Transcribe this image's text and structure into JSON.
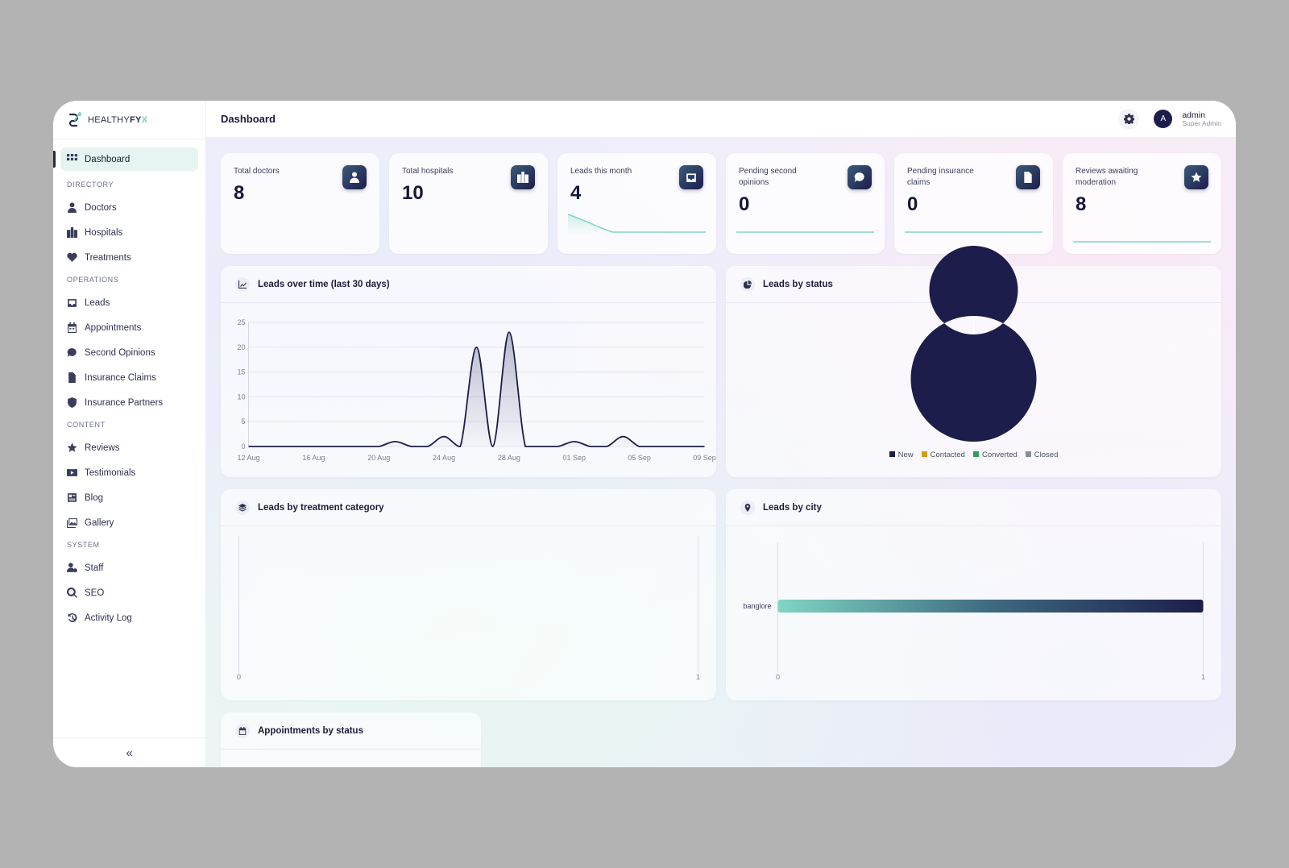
{
  "brand": {
    "prefix": "HEALTHY",
    "bold": "FY",
    "accent": "X"
  },
  "header": {
    "title": "Dashboard",
    "user_initial": "A",
    "user_name": "admin",
    "user_role": "Super Admin"
  },
  "sidebar": {
    "active": "Dashboard",
    "directory_label": "DIRECTORY",
    "directory": [
      "Doctors",
      "Hospitals",
      "Treatments"
    ],
    "operations_label": "OPERATIONS",
    "operations": [
      "Leads",
      "Appointments",
      "Second Opinions",
      "Insurance Claims",
      "Insurance Partners"
    ],
    "content_label": "CONTENT",
    "content": [
      "Reviews",
      "Testimonials",
      "Blog",
      "Gallery"
    ],
    "system_label": "SYSTEM",
    "system": [
      "Staff",
      "SEO",
      "Activity Log"
    ],
    "collapse": "«"
  },
  "stats": [
    {
      "label": "Total doctors",
      "value": "8",
      "icon": "doctor-icon"
    },
    {
      "label": "Total hospitals",
      "value": "10",
      "icon": "hospital-icon"
    },
    {
      "label": "Leads this month",
      "value": "4",
      "icon": "inbox-icon"
    },
    {
      "label": "Pending second opinions",
      "value": "0",
      "icon": "comment-icon"
    },
    {
      "label": "Pending insurance claims",
      "value": "0",
      "icon": "file-medical-icon"
    },
    {
      "label": "Reviews awaiting moderation",
      "value": "8",
      "icon": "star-icon"
    }
  ],
  "cards": {
    "leads_over_time": "Leads over time (last 30 days)",
    "leads_by_status": "Leads by status",
    "leads_by_treatment": "Leads by treatment category",
    "leads_by_city": "Leads by city",
    "appointments_by_status": "Appointments by status"
  },
  "colors": {
    "navy": "#1c1d4a",
    "teal": "#7fd6c3",
    "amber": "#d39a1e",
    "green": "#2f9e5c",
    "grey": "#8a8d9c"
  },
  "chart_data": [
    {
      "type": "area",
      "title": "Leads over time (last 30 days)",
      "x": [
        "12 Aug",
        "13 Aug",
        "14 Aug",
        "15 Aug",
        "16 Aug",
        "17 Aug",
        "18 Aug",
        "19 Aug",
        "20 Aug",
        "21 Aug",
        "22 Aug",
        "23 Aug",
        "24 Aug",
        "25 Aug",
        "26 Aug",
        "27 Aug",
        "28 Aug",
        "29 Aug",
        "30 Aug",
        "31 Aug",
        "01 Sep",
        "02 Sep",
        "03 Sep",
        "04 Sep",
        "05 Sep",
        "06 Sep",
        "07 Sep",
        "08 Sep",
        "09 Sep"
      ],
      "x_tick_labels": [
        "12 Aug",
        "16 Aug",
        "20 Aug",
        "24 Aug",
        "28 Aug",
        "01 Sep",
        "05 Sep",
        "09 Sep"
      ],
      "y": [
        0,
        0,
        0,
        0,
        0,
        0,
        0,
        0,
        0,
        1,
        0,
        0,
        2,
        0,
        20,
        0,
        23,
        0,
        0,
        0,
        1,
        0,
        0,
        2,
        0,
        0,
        0,
        0,
        0
      ],
      "ylim": [
        0,
        25
      ],
      "y_ticks": [
        0,
        5,
        10,
        15,
        20,
        25
      ],
      "grid": true
    },
    {
      "type": "pie",
      "title": "Leads by status",
      "categories": [
        "New",
        "Contacted",
        "Converted",
        "Closed"
      ],
      "values": [
        1,
        0,
        0,
        0
      ],
      "legend": "bottom"
    },
    {
      "type": "bar",
      "title": "Leads by treatment category",
      "categories": [],
      "values": [],
      "x_ticks": [
        0,
        1
      ],
      "xlim": [
        0,
        1
      ]
    },
    {
      "type": "bar",
      "orientation": "horizontal",
      "title": "Leads by city",
      "categories": [
        "banglore"
      ],
      "values": [
        1
      ],
      "x_ticks": [
        0,
        1
      ],
      "xlim": [
        0,
        1
      ]
    }
  ]
}
